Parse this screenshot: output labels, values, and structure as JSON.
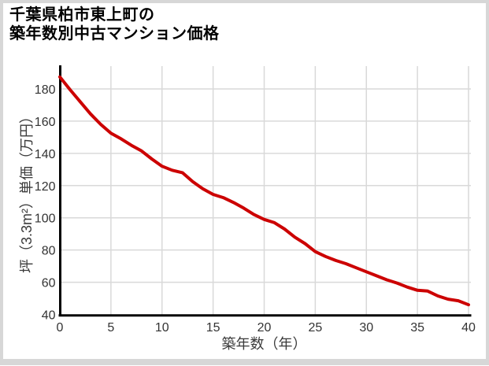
{
  "title": {
    "line1": "千葉県柏市東上町の",
    "line2": "築年数別中古マンション価格"
  },
  "chart_data": {
    "type": "line",
    "title": "千葉県柏市東上町の築年数別中古マンション価格",
    "xlabel": "築年数（年）",
    "ylabel": "坪（3.3m²）単価（万円）",
    "x": [
      0,
      1,
      2,
      3,
      4,
      5,
      6,
      7,
      8,
      9,
      10,
      11,
      12,
      13,
      14,
      15,
      16,
      17,
      18,
      19,
      20,
      21,
      22,
      23,
      24,
      25,
      26,
      27,
      28,
      29,
      30,
      31,
      32,
      33,
      34,
      35,
      36,
      37,
      38,
      39,
      40
    ],
    "values": [
      187.5,
      179.5,
      172,
      164.5,
      158,
      152.5,
      149,
      145,
      141.5,
      136.5,
      132,
      129.5,
      128,
      122.5,
      118,
      114.5,
      112.5,
      109.5,
      106,
      102,
      99,
      97,
      93,
      88,
      84,
      79,
      76,
      73.5,
      71.5,
      69,
      66.5,
      64,
      61.5,
      59.5,
      57,
      55,
      54.5,
      51.5,
      49.5,
      48.5,
      46
    ],
    "x_ticks": [
      0,
      5,
      10,
      15,
      20,
      25,
      30,
      35,
      40
    ],
    "y_ticks": [
      40,
      60,
      80,
      100,
      120,
      140,
      160,
      180
    ],
    "xlim": [
      0,
      40
    ],
    "ylim": [
      40,
      194
    ],
    "grid": true,
    "legend": false,
    "line_color": "#cc0000",
    "grid_color": "#d9d9d9",
    "axis_color": "#000000",
    "tick_label_color": "#333333"
  }
}
